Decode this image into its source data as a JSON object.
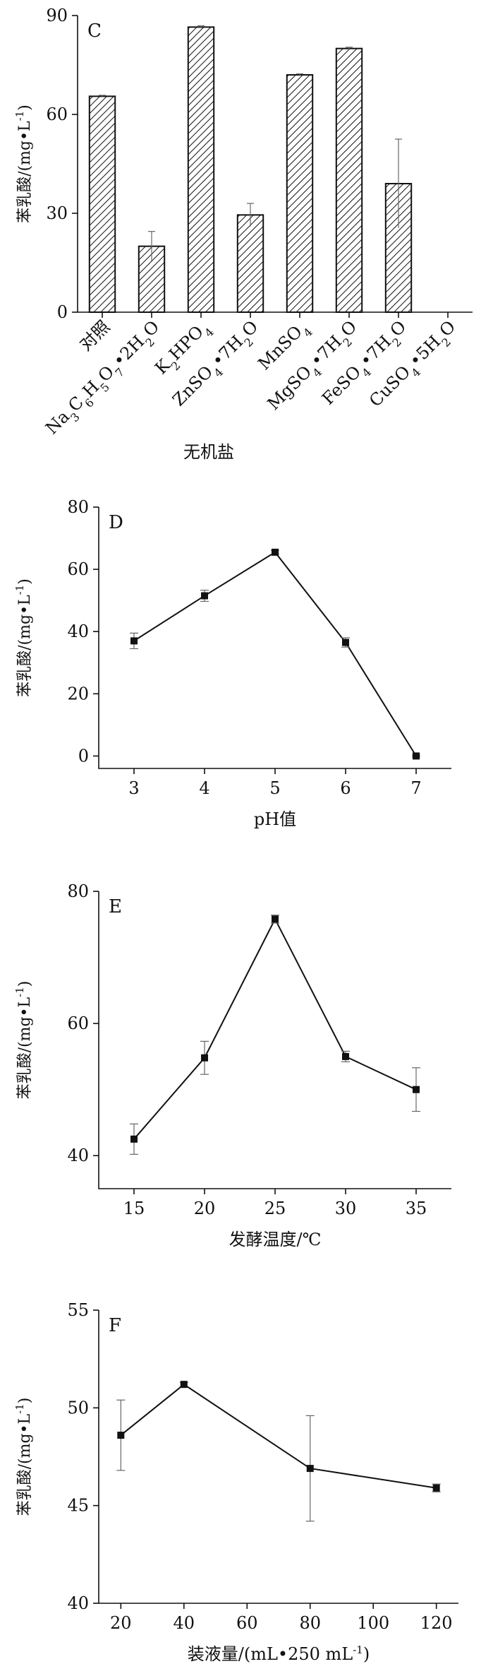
{
  "figure": {
    "ylabel_main": "苯乳酸/",
    "ylabel_unit": "mg•L",
    "ylabel_sup": "-1"
  },
  "chart_data": [
    {
      "panel": "C",
      "type": "bar",
      "xlabel": "无机盐",
      "categories": [
        "对照",
        "Na3C6H5O7•2H2O",
        "K2HPO4",
        "ZnSO4•7H2O",
        "MnSO4",
        "MgSO4•7H2O",
        "FeSO4•7H2O",
        "CuSO4•5H2O"
      ],
      "category_labels": [
        [
          [
            "对照",
            ""
          ]
        ],
        [
          [
            "Na",
            ""
          ],
          [
            "3",
            "sub"
          ],
          [
            "C",
            ""
          ],
          [
            "6",
            "sub"
          ],
          [
            "H",
            ""
          ],
          [
            "5",
            "sub"
          ],
          [
            "O",
            ""
          ],
          [
            "7",
            "sub"
          ],
          [
            "•2H",
            ""
          ],
          [
            "2",
            "sub"
          ],
          [
            "O",
            ""
          ]
        ],
        [
          [
            "K",
            ""
          ],
          [
            "2",
            "sub"
          ],
          [
            "HPO",
            ""
          ],
          [
            "4",
            "sub"
          ]
        ],
        [
          [
            "ZnSO",
            ""
          ],
          [
            "4",
            "sub"
          ],
          [
            "•7H",
            ""
          ],
          [
            "2",
            "sub"
          ],
          [
            "O",
            ""
          ]
        ],
        [
          [
            "MnSO",
            ""
          ],
          [
            "4",
            "sub"
          ]
        ],
        [
          [
            "MgSO",
            ""
          ],
          [
            "4",
            "sub"
          ],
          [
            "•7H",
            ""
          ],
          [
            "2",
            "sub"
          ],
          [
            "O",
            ""
          ]
        ],
        [
          [
            "FeSO",
            ""
          ],
          [
            "4",
            "sub"
          ],
          [
            "•7H",
            ""
          ],
          [
            "2",
            "sub"
          ],
          [
            "O",
            ""
          ]
        ],
        [
          [
            "CuSO",
            ""
          ],
          [
            "4",
            "sub"
          ],
          [
            "•5H",
            ""
          ],
          [
            "2",
            "sub"
          ],
          [
            "O",
            ""
          ]
        ]
      ],
      "values": [
        65.5,
        20.0,
        86.5,
        29.5,
        72.0,
        80.0,
        39.0,
        0
      ],
      "errors": [
        0.3,
        4.5,
        0.4,
        3.5,
        0.3,
        0.4,
        13.5,
        0
      ],
      "ylim": [
        0,
        90
      ],
      "yticks": [
        0,
        30,
        60,
        90
      ]
    },
    {
      "panel": "D",
      "type": "line",
      "xlabel": "pH值",
      "x": [
        3,
        4,
        5,
        6,
        7
      ],
      "y": [
        37.0,
        51.5,
        65.5,
        36.5,
        0.0
      ],
      "errors": [
        2.5,
        1.8,
        0.6,
        1.5,
        0.3
      ],
      "xlim": [
        2.5,
        7.5
      ],
      "xticks": [
        3,
        4,
        5,
        6,
        7
      ],
      "ylim": [
        -4,
        80
      ],
      "yticks": [
        0,
        20,
        40,
        60,
        80
      ]
    },
    {
      "panel": "E",
      "type": "line",
      "xlabel": "发酵温度/℃",
      "x": [
        15,
        20,
        25,
        30,
        35
      ],
      "y": [
        42.5,
        54.8,
        75.8,
        55.0,
        50.0
      ],
      "errors": [
        2.3,
        2.5,
        0.6,
        0.8,
        3.3
      ],
      "xlim": [
        12.5,
        37.5
      ],
      "xticks": [
        15,
        20,
        25,
        30,
        35
      ],
      "ylim": [
        35,
        80
      ],
      "yticks": [
        40,
        60,
        80
      ]
    },
    {
      "panel": "F",
      "type": "line",
      "xlabel": "装液量/(mL•250 mL",
      "xlabel_sup": "-1",
      "xlabel_end": ")",
      "x": [
        20,
        40,
        80,
        120
      ],
      "y": [
        48.6,
        51.2,
        46.9,
        45.9
      ],
      "errors": [
        1.8,
        0.1,
        2.7,
        0.2
      ],
      "xlim": [
        13,
        127
      ],
      "xticks": [
        20,
        40,
        60,
        80,
        100,
        120
      ],
      "ylim": [
        40,
        55
      ],
      "yticks": [
        40,
        45,
        50,
        55
      ]
    }
  ]
}
